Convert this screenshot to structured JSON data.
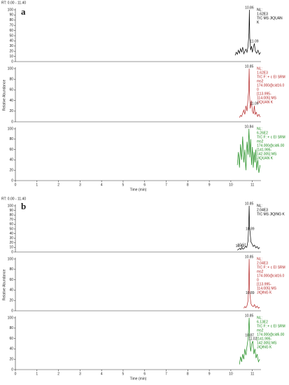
{
  "panels": [
    {
      "label": "a",
      "range": "RT: 0.00 - 11.40"
    },
    {
      "label": "b",
      "range": "RT: 0.00 - 11.40"
    }
  ],
  "chart_data": [
    {
      "type": "line",
      "color": "#000000",
      "xlim": [
        0,
        11.4
      ],
      "ylim": [
        0,
        100
      ],
      "yticks": [
        0,
        10,
        20,
        30,
        40,
        50,
        60,
        70,
        80,
        90,
        100
      ],
      "x": [
        10.2,
        10.25,
        10.3,
        10.35,
        10.4,
        10.45,
        10.5,
        10.55,
        10.6,
        10.65,
        10.7,
        10.75,
        10.8,
        10.84,
        10.86,
        10.88,
        10.92,
        10.96,
        11.0,
        11.04,
        11.09,
        11.14,
        11.2,
        11.26,
        11.32,
        11.38
      ],
      "values": [
        12,
        18,
        14,
        22,
        16,
        25,
        18,
        28,
        15,
        20,
        24,
        18,
        30,
        55,
        100,
        45,
        22,
        30,
        18,
        26,
        35,
        20,
        16,
        22,
        14,
        18
      ],
      "annotations": [
        {
          "text": "10.86",
          "x": 10.86,
          "y": 100
        },
        {
          "text": "11.09",
          "x": 11.09,
          "y": 35
        }
      ],
      "info": [
        "NL:",
        "1.62E3",
        "TIC  MS JIQUAN",
        "K"
      ]
    },
    {
      "type": "line",
      "color": "#b22222",
      "xlim": [
        0,
        11.4
      ],
      "ylim": [
        0,
        100
      ],
      "yticks": [
        0,
        20,
        40,
        60,
        80,
        100
      ],
      "ylabel": "Relative Abundance",
      "x": [
        10.4,
        10.45,
        10.5,
        10.55,
        10.6,
        10.65,
        10.7,
        10.75,
        10.8,
        10.83,
        10.85,
        10.87,
        10.9,
        10.95,
        11.0,
        11.05,
        11.09,
        11.13,
        11.18,
        11.24,
        11.3,
        11.36
      ],
      "values": [
        8,
        12,
        10,
        16,
        22,
        14,
        30,
        20,
        45,
        60,
        100,
        50,
        25,
        40,
        20,
        15,
        30,
        14,
        18,
        10,
        14,
        9
      ],
      "annotations": [
        {
          "text": "10.85",
          "x": 10.85,
          "y": 100
        },
        {
          "text": "11.09",
          "x": 11.09,
          "y": 30
        }
      ],
      "info": [
        "NL:",
        "1.62E3",
        "TIC F: + c EI SRM",
        "ms2",
        "174.000@cid16.0",
        "0",
        "[113.995-",
        "114.005]  MS",
        "JIQUAN K"
      ]
    },
    {
      "type": "line",
      "color": "#1a8a1a",
      "xlim": [
        0,
        11.4
      ],
      "ylim": [
        0,
        100
      ],
      "yticks": [
        0,
        20,
        40,
        60,
        80,
        100
      ],
      "xticks": [
        0,
        1,
        2,
        3,
        4,
        5,
        6,
        7,
        8,
        9,
        10,
        11
      ],
      "xlabel": "Time (min)",
      "x": [
        10.3,
        10.35,
        10.4,
        10.45,
        10.5,
        10.55,
        10.6,
        10.65,
        10.7,
        10.75,
        10.8,
        10.84,
        10.88,
        10.92,
        10.96,
        11.0,
        11.04,
        11.08,
        11.12,
        11.16,
        11.2,
        11.25,
        11.3,
        11.36
      ],
      "values": [
        30,
        55,
        25,
        70,
        40,
        85,
        35,
        60,
        20,
        75,
        50,
        100,
        45,
        80,
        30,
        65,
        25,
        55,
        35,
        60,
        20,
        40,
        15,
        30
      ],
      "annotations": [
        {
          "text": "10.84",
          "x": 10.84,
          "y": 100
        }
      ],
      "info": [
        "NL:",
        "6.26E2",
        "TIC F: + c EI SRM",
        "ms2",
        "174.000@cid6.00",
        "[141.995-",
        "142.005]  MS",
        "JIQUAN K"
      ]
    },
    {
      "type": "line",
      "color": "#000000",
      "xlim": [
        0,
        11.4
      ],
      "ylim": [
        0,
        100
      ],
      "yticks": [
        0,
        10,
        20,
        30,
        40,
        50,
        60,
        70,
        80,
        90,
        100
      ],
      "x": [
        10.3,
        10.36,
        10.42,
        10.46,
        10.51,
        10.56,
        10.62,
        10.68,
        10.74,
        10.8,
        10.83,
        10.85,
        10.87,
        10.89,
        10.93,
        10.98,
        11.04,
        11.1,
        11.16,
        11.22,
        11.28,
        11.34
      ],
      "values": [
        4,
        6,
        8,
        5,
        10,
        6,
        8,
        12,
        10,
        25,
        60,
        100,
        50,
        45,
        22,
        18,
        12,
        15,
        9,
        12,
        7,
        10
      ],
      "annotations": [
        {
          "text": "10.85",
          "x": 10.85,
          "y": 100
        },
        {
          "text": "10.89",
          "x": 10.89,
          "y": 45
        },
        {
          "text": "10.42",
          "x": 10.42,
          "y": 8
        },
        {
          "text": "10.51",
          "x": 10.51,
          "y": 10
        }
      ],
      "info": [
        "NL:",
        "2.04E3",
        "TIC  MS JIQING K"
      ]
    },
    {
      "type": "line",
      "color": "#b22222",
      "xlim": [
        0,
        11.4
      ],
      "ylim": [
        0,
        100
      ],
      "yticks": [
        0,
        20,
        40,
        60,
        80,
        100
      ],
      "ylabel": "Relative Abundance",
      "x": [
        10.6,
        10.65,
        10.7,
        10.75,
        10.8,
        10.83,
        10.85,
        10.87,
        10.89,
        10.93,
        10.98,
        11.04,
        11.1,
        11.16,
        11.22,
        11.28,
        11.34
      ],
      "values": [
        5,
        8,
        6,
        10,
        20,
        55,
        100,
        40,
        30,
        14,
        10,
        8,
        12,
        6,
        9,
        5,
        7
      ],
      "annotations": [
        {
          "text": "10.85",
          "x": 10.85,
          "y": 100
        },
        {
          "text": "10.89",
          "x": 10.89,
          "y": 30
        }
      ],
      "info": [
        "NL:",
        "2.04E3",
        "TIC F: + c EI SRM",
        "ms2",
        "174.000@cid16.0",
        "0",
        "[113.995-",
        "114.005]  MS",
        "JIQING K"
      ]
    },
    {
      "type": "line",
      "color": "#1a8a1a",
      "xlim": [
        0,
        11.4
      ],
      "ylim": [
        0,
        100
      ],
      "yticks": [
        0,
        20,
        40,
        60,
        80,
        100
      ],
      "xticks": [
        0,
        1,
        2,
        3,
        4,
        5,
        6,
        7,
        8,
        9,
        10,
        11
      ],
      "xlabel": "Time (min)",
      "x": [
        10.4,
        10.45,
        10.5,
        10.55,
        10.6,
        10.65,
        10.7,
        10.75,
        10.8,
        10.85,
        10.87,
        10.92,
        10.97,
        11.02,
        11.07,
        11.12,
        11.17,
        11.22,
        11.28,
        11.34
      ],
      "values": [
        10,
        25,
        15,
        30,
        20,
        40,
        28,
        45,
        60,
        100,
        62,
        35,
        50,
        55,
        30,
        40,
        22,
        30,
        15,
        20
      ],
      "annotations": [
        {
          "text": "10.85",
          "x": 10.85,
          "y": 100
        },
        {
          "text": "10.87",
          "x": 10.87,
          "y": 62
        },
        {
          "text": "11.02",
          "x": 11.02,
          "y": 55
        }
      ],
      "info": [
        "NL:",
        "6.13E2",
        "TIC F: + c EI SRM",
        "ms2",
        "174.000@cid6.00",
        "[141.995-",
        "142.005]  MS",
        "JIQING K"
      ]
    }
  ]
}
